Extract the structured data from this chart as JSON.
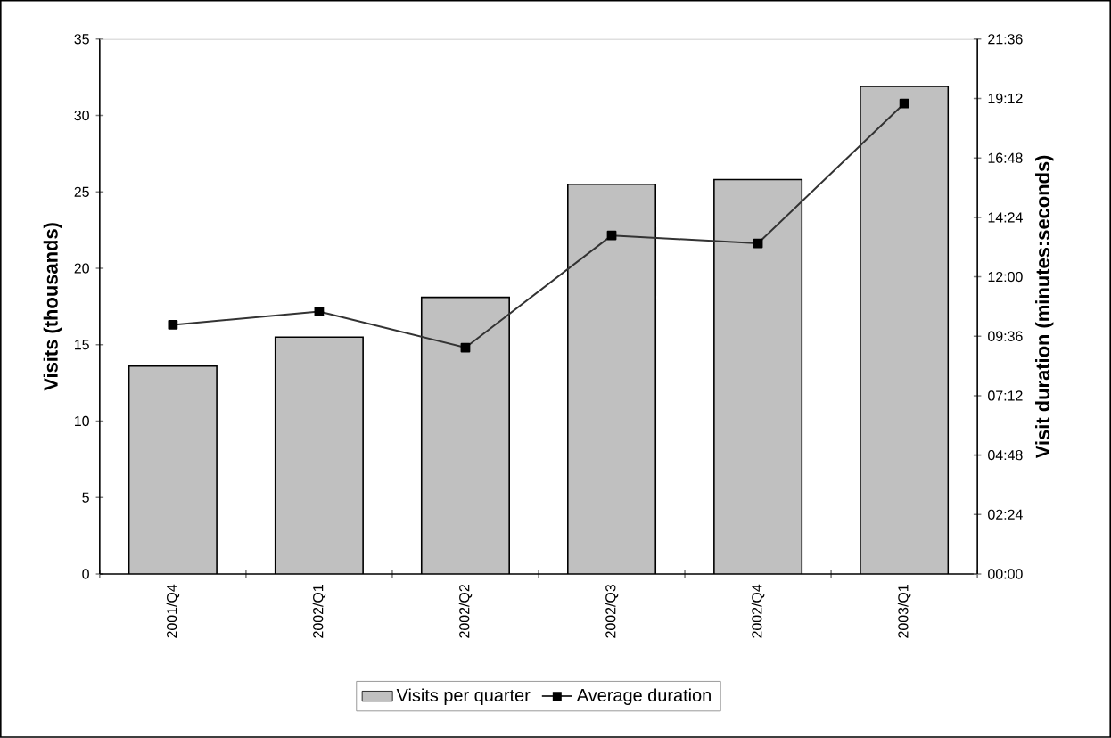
{
  "chart_data": {
    "type": "bar",
    "ylabel": "Visits (thousands)",
    "y2label": "Visit duration (minutes:seconds)",
    "categories": [
      "2001/Q4",
      "2002/Q1",
      "2002/Q2",
      "2002/Q3",
      "2002/Q4",
      "2003/Q1"
    ],
    "series": [
      {
        "name": "Visits per quarter",
        "color": "#c0c0c0",
        "values": [
          13.6,
          15.5,
          18.1,
          25.5,
          25.8,
          31.9
        ]
      },
      {
        "name": "Average duration",
        "type": "line",
        "axis": "y2",
        "color": "#333333",
        "values": [
          10.06,
          10.6,
          9.14,
          13.67,
          13.35,
          19.0
        ]
      }
    ],
    "ylim": [
      0,
      35
    ],
    "yticks": [
      0,
      5,
      10,
      15,
      20,
      25,
      30,
      35
    ],
    "y2lim": [
      0,
      21.6
    ],
    "y2ticks": [
      {
        "value": 0,
        "label": "00:00"
      },
      {
        "value": 2.4,
        "label": "02:24"
      },
      {
        "value": 4.8,
        "label": "04:48"
      },
      {
        "value": 7.2,
        "label": "07:12"
      },
      {
        "value": 9.6,
        "label": "09:36"
      },
      {
        "value": 12,
        "label": "12:00"
      },
      {
        "value": 14.4,
        "label": "14:24"
      },
      {
        "value": 16.8,
        "label": "16:48"
      },
      {
        "value": 19.2,
        "label": "19:12"
      },
      {
        "value": 21.6,
        "label": "21:36"
      }
    ],
    "marker": "square",
    "legend": "bottom",
    "grid": false
  }
}
